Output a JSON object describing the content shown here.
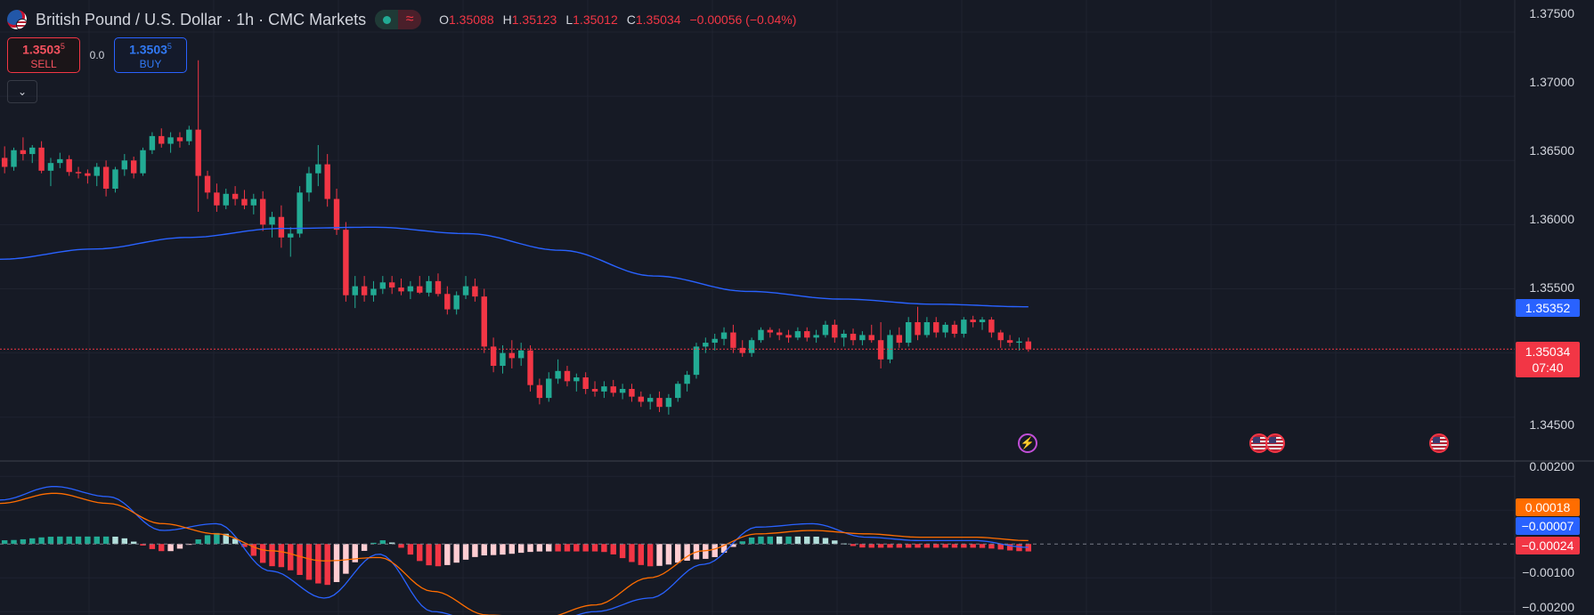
{
  "header": {
    "symbol_title": "British Pound / U.S. Dollar · 1h · CMC Markets",
    "ohlc": [
      {
        "key": "O",
        "value": "1.35088"
      },
      {
        "key": "H",
        "value": "1.35123"
      },
      {
        "key": "L",
        "value": "1.35012"
      },
      {
        "key": "C",
        "value": "1.35034"
      }
    ],
    "change": "−0.00056 (−0.04%)"
  },
  "trade": {
    "sell_price_main": "1.3503",
    "sell_price_pip": "5",
    "sell_label": "SELL",
    "spread": "0.0",
    "buy_price_main": "1.3503",
    "buy_price_pip": "5",
    "buy_label": "BUY"
  },
  "price_axis": [
    "1.37500",
    "1.37000",
    "1.36500",
    "1.36000",
    "1.35500",
    "1.34500"
  ],
  "macd_axis": [
    "0.00200",
    "−0.00100",
    "−0.00200"
  ],
  "tags": {
    "ma_value": "1.35352",
    "last_price": "1.35034",
    "countdown": "07:40",
    "macd_signal": "0.00018",
    "macd_line": "−0.00007",
    "macd_hist": "−0.00024"
  },
  "events": [
    {
      "icon": "lightning-icon"
    },
    {
      "icon": "us-flag-icon"
    },
    {
      "icon": "us-flag-icon"
    },
    {
      "icon": "us-flag-icon"
    }
  ],
  "colors": {
    "background": "#161a25",
    "up": "#22ab94",
    "down": "#f23645",
    "ma": "#2962ff",
    "signal": "#ff6d00",
    "hist_pos_light": "#b2dfdb",
    "hist_neg_light": "#ffcdd2"
  },
  "chart_data": {
    "type": "candlestick",
    "price_range": [
      1.342,
      1.3775
    ],
    "macd_range": [
      -0.0021,
      0.0024
    ],
    "ma_anchors": [
      1.3573,
      1.3581,
      1.359,
      1.3597,
      1.3598,
      1.3593,
      1.358,
      1.356,
      1.3548,
      1.3542,
      1.3538,
      1.3536
    ],
    "macd_line_anchors": [
      0.0013,
      0.0017,
      0.0014,
      0.0004,
      0.0006,
      -0.0008,
      -0.0016,
      -0.0003,
      -0.002,
      -0.0024,
      -0.0024,
      -0.002,
      -0.0016,
      -0.0006,
      0.0005,
      0.0006,
      0.0002,
      0.0001,
      0.0001,
      -0.0001
    ],
    "signal_anchors": [
      0.0012,
      0.0015,
      0.0012,
      0.0006,
      0.0003,
      -0.0002,
      -0.0005,
      -0.0004,
      -0.0014,
      -0.0021,
      -0.0022,
      -0.0018,
      -0.001,
      -0.0002,
      0.0003,
      0.0004,
      0.0003,
      0.0002,
      0.0002,
      0.0001
    ],
    "candles": [
      [
        1.3652,
        1.3661,
        1.364,
        1.3645
      ],
      [
        1.3645,
        1.366,
        1.3642,
        1.3658
      ],
      [
        1.3658,
        1.3668,
        1.365,
        1.3655
      ],
      [
        1.3655,
        1.3662,
        1.3648,
        1.366
      ],
      [
        1.366,
        1.3665,
        1.364,
        1.3642
      ],
      [
        1.3642,
        1.3652,
        1.363,
        1.3648
      ],
      [
        1.3648,
        1.3656,
        1.3644,
        1.3651
      ],
      [
        1.3651,
        1.3654,
        1.3638,
        1.3641
      ],
      [
        1.3641,
        1.3645,
        1.3636,
        1.364
      ],
      [
        1.364,
        1.3643,
        1.3632,
        1.3638
      ],
      [
        1.3638,
        1.3648,
        1.363,
        1.3645
      ],
      [
        1.3645,
        1.365,
        1.3622,
        1.3628
      ],
      [
        1.3628,
        1.3645,
        1.3625,
        1.3643
      ],
      [
        1.3643,
        1.3655,
        1.3638,
        1.365
      ],
      [
        1.365,
        1.3653,
        1.3636,
        1.364
      ],
      [
        1.364,
        1.366,
        1.3638,
        1.3658
      ],
      [
        1.3658,
        1.3672,
        1.3655,
        1.3669
      ],
      [
        1.3669,
        1.3675,
        1.366,
        1.3663
      ],
      [
        1.3663,
        1.3672,
        1.3656,
        1.3668
      ],
      [
        1.3668,
        1.3672,
        1.366,
        1.3665
      ],
      [
        1.3665,
        1.3677,
        1.3662,
        1.3674
      ],
      [
        1.3674,
        1.3728,
        1.361,
        1.3638
      ],
      [
        1.3638,
        1.3642,
        1.362,
        1.3625
      ],
      [
        1.3625,
        1.3632,
        1.361,
        1.3615
      ],
      [
        1.3615,
        1.3628,
        1.3612,
        1.3624
      ],
      [
        1.3624,
        1.363,
        1.3615,
        1.362
      ],
      [
        1.362,
        1.3627,
        1.3612,
        1.3615
      ],
      [
        1.3615,
        1.3624,
        1.3608,
        1.362
      ],
      [
        1.362,
        1.3626,
        1.3595,
        1.36
      ],
      [
        1.36,
        1.361,
        1.359,
        1.3606
      ],
      [
        1.3606,
        1.3615,
        1.3582,
        1.359
      ],
      [
        1.359,
        1.3598,
        1.3575,
        1.3593
      ],
      [
        1.3593,
        1.363,
        1.359,
        1.3625
      ],
      [
        1.3625,
        1.3645,
        1.3618,
        1.364
      ],
      [
        1.364,
        1.3662,
        1.363,
        1.3647
      ],
      [
        1.3647,
        1.3655,
        1.3614,
        1.362
      ],
      [
        1.362,
        1.3628,
        1.3592,
        1.3596
      ],
      [
        1.3596,
        1.3602,
        1.354,
        1.3545
      ],
      [
        1.3545,
        1.356,
        1.3535,
        1.3552
      ],
      [
        1.3552,
        1.356,
        1.354,
        1.3545
      ],
      [
        1.3545,
        1.3556,
        1.354,
        1.355
      ],
      [
        1.355,
        1.356,
        1.3546,
        1.3555
      ],
      [
        1.3555,
        1.356,
        1.3546,
        1.3551
      ],
      [
        1.3551,
        1.3558,
        1.3545,
        1.3548
      ],
      [
        1.3548,
        1.3556,
        1.3542,
        1.3552
      ],
      [
        1.3552,
        1.356,
        1.3546,
        1.3547
      ],
      [
        1.3547,
        1.356,
        1.3544,
        1.3556
      ],
      [
        1.3556,
        1.3562,
        1.3544,
        1.3546
      ],
      [
        1.3546,
        1.3552,
        1.353,
        1.3534
      ],
      [
        1.3534,
        1.3548,
        1.353,
        1.3545
      ],
      [
        1.3545,
        1.356,
        1.3542,
        1.3552
      ],
      [
        1.3552,
        1.3558,
        1.354,
        1.3544
      ],
      [
        1.3544,
        1.355,
        1.35,
        1.3505
      ],
      [
        1.3505,
        1.3512,
        1.3485,
        1.349
      ],
      [
        1.349,
        1.3506,
        1.3484,
        1.35
      ],
      [
        1.35,
        1.351,
        1.3488,
        1.3496
      ],
      [
        1.3496,
        1.3508,
        1.349,
        1.3502
      ],
      [
        1.3502,
        1.3506,
        1.347,
        1.3475
      ],
      [
        1.3475,
        1.348,
        1.346,
        1.3465
      ],
      [
        1.3465,
        1.3485,
        1.3462,
        1.348
      ],
      [
        1.348,
        1.3495,
        1.3476,
        1.3486
      ],
      [
        1.3486,
        1.349,
        1.3474,
        1.3478
      ],
      [
        1.3478,
        1.3484,
        1.347,
        1.3481
      ],
      [
        1.3481,
        1.3485,
        1.3468,
        1.3472
      ],
      [
        1.3472,
        1.3478,
        1.3466,
        1.347
      ],
      [
        1.347,
        1.3478,
        1.3465,
        1.3474
      ],
      [
        1.3474,
        1.3479,
        1.3466,
        1.3469
      ],
      [
        1.3469,
        1.3476,
        1.3464,
        1.3472
      ],
      [
        1.3472,
        1.3476,
        1.3462,
        1.3466
      ],
      [
        1.3466,
        1.347,
        1.3458,
        1.3462
      ],
      [
        1.3462,
        1.3468,
        1.3456,
        1.3465
      ],
      [
        1.3465,
        1.347,
        1.3454,
        1.3458
      ],
      [
        1.3458,
        1.3468,
        1.3452,
        1.3465
      ],
      [
        1.3465,
        1.3478,
        1.3462,
        1.3476
      ],
      [
        1.3476,
        1.3486,
        1.347,
        1.3483
      ],
      [
        1.3483,
        1.3508,
        1.348,
        1.3505
      ],
      [
        1.3505,
        1.3512,
        1.35,
        1.3508
      ],
      [
        1.3508,
        1.3515,
        1.3502,
        1.3511
      ],
      [
        1.3511,
        1.352,
        1.3506,
        1.3516
      ],
      [
        1.3516,
        1.3522,
        1.35,
        1.3504
      ],
      [
        1.3504,
        1.351,
        1.3497,
        1.35
      ],
      [
        1.35,
        1.3512,
        1.3497,
        1.351
      ],
      [
        1.351,
        1.352,
        1.3508,
        1.3518
      ],
      [
        1.3518,
        1.352,
        1.3512,
        1.3516
      ],
      [
        1.3516,
        1.3519,
        1.351,
        1.3514
      ],
      [
        1.3514,
        1.3518,
        1.3508,
        1.3512
      ],
      [
        1.3512,
        1.352,
        1.351,
        1.3517
      ],
      [
        1.3517,
        1.352,
        1.3509,
        1.3512
      ],
      [
        1.3512,
        1.3518,
        1.3508,
        1.3514
      ],
      [
        1.3514,
        1.3525,
        1.3512,
        1.3522
      ],
      [
        1.3522,
        1.3526,
        1.3508,
        1.3512
      ],
      [
        1.3512,
        1.3518,
        1.3505,
        1.3515
      ],
      [
        1.3515,
        1.3519,
        1.3506,
        1.351
      ],
      [
        1.351,
        1.3517,
        1.3506,
        1.3514
      ],
      [
        1.3514,
        1.3522,
        1.3508,
        1.351
      ],
      [
        1.351,
        1.3524,
        1.3488,
        1.3495
      ],
      [
        1.3495,
        1.3518,
        1.3492,
        1.3514
      ],
      [
        1.3514,
        1.352,
        1.3504,
        1.3508
      ],
      [
        1.3508,
        1.3528,
        1.3505,
        1.3524
      ],
      [
        1.3524,
        1.3536,
        1.351,
        1.3514
      ],
      [
        1.3514,
        1.3528,
        1.3512,
        1.3524
      ],
      [
        1.3524,
        1.3528,
        1.3512,
        1.3516
      ],
      [
        1.3516,
        1.3524,
        1.3512,
        1.3522
      ],
      [
        1.3522,
        1.3525,
        1.3512,
        1.3515
      ],
      [
        1.3515,
        1.3528,
        1.3512,
        1.3526
      ],
      [
        1.3526,
        1.3529,
        1.352,
        1.3524
      ],
      [
        1.3524,
        1.3528,
        1.3518,
        1.3526
      ],
      [
        1.3526,
        1.3528,
        1.3512,
        1.3516
      ],
      [
        1.3516,
        1.3518,
        1.3504,
        1.351
      ],
      [
        1.351,
        1.3514,
        1.3505,
        1.3508
      ],
      [
        1.3508,
        1.3512,
        1.3502,
        1.3509
      ],
      [
        1.3509,
        1.3512,
        1.3501,
        1.3503
      ]
    ]
  }
}
